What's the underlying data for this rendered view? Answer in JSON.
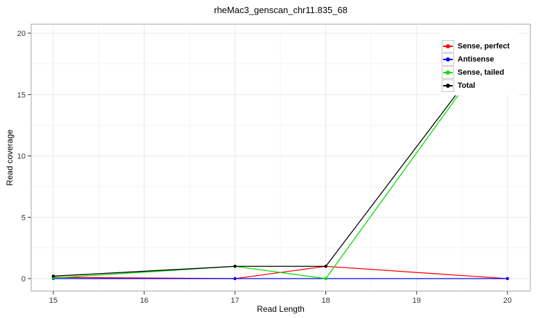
{
  "title": "rheMac3_genscan_chr11.835_68",
  "chart_data": {
    "type": "line",
    "title": "rheMac3_genscan_chr11.835_68",
    "xlabel": "Read Length",
    "ylabel": "Read coverage",
    "x": [
      15,
      17,
      18,
      20
    ],
    "series": [
      {
        "name": "Sense, perfect",
        "color": "#ff0000",
        "values": [
          0.1,
          0,
          1,
          0
        ]
      },
      {
        "name": "Antisense",
        "color": "#0000ff",
        "values": [
          0,
          0,
          0,
          0
        ]
      },
      {
        "name": "Sense, tailed",
        "color": "#00dd00",
        "values": [
          0.05,
          1,
          0,
          20.5
        ]
      },
      {
        "name": "Total",
        "color": "#000000",
        "values": [
          0.2,
          1,
          1,
          20.5
        ]
      }
    ],
    "x_ticks": [
      15,
      16,
      17,
      18,
      19,
      20
    ],
    "x_tick_labels": [
      "15",
      "16",
      "17",
      "18",
      "19",
      "20"
    ],
    "y_ticks": [
      0,
      5,
      10,
      15,
      20
    ],
    "y_tick_labels": [
      "0",
      "5",
      "10",
      "15",
      "20"
    ],
    "xlim": [
      14.75,
      20.25
    ],
    "ylim": [
      -1,
      20.7
    ],
    "grid": true,
    "legend_position": "top-right-inside",
    "legend_labels": [
      "Sense, perfect",
      "Antisense",
      "Sense, tailed",
      "Total"
    ]
  },
  "colors": {
    "panel_background": "#ffffff",
    "panel_border": "#a3a3a3",
    "grid_major": "#e7e7e7",
    "grid_minor": "#f4f4f4",
    "tick": "#333333",
    "tick_label": "#333333",
    "text": "#000000"
  }
}
